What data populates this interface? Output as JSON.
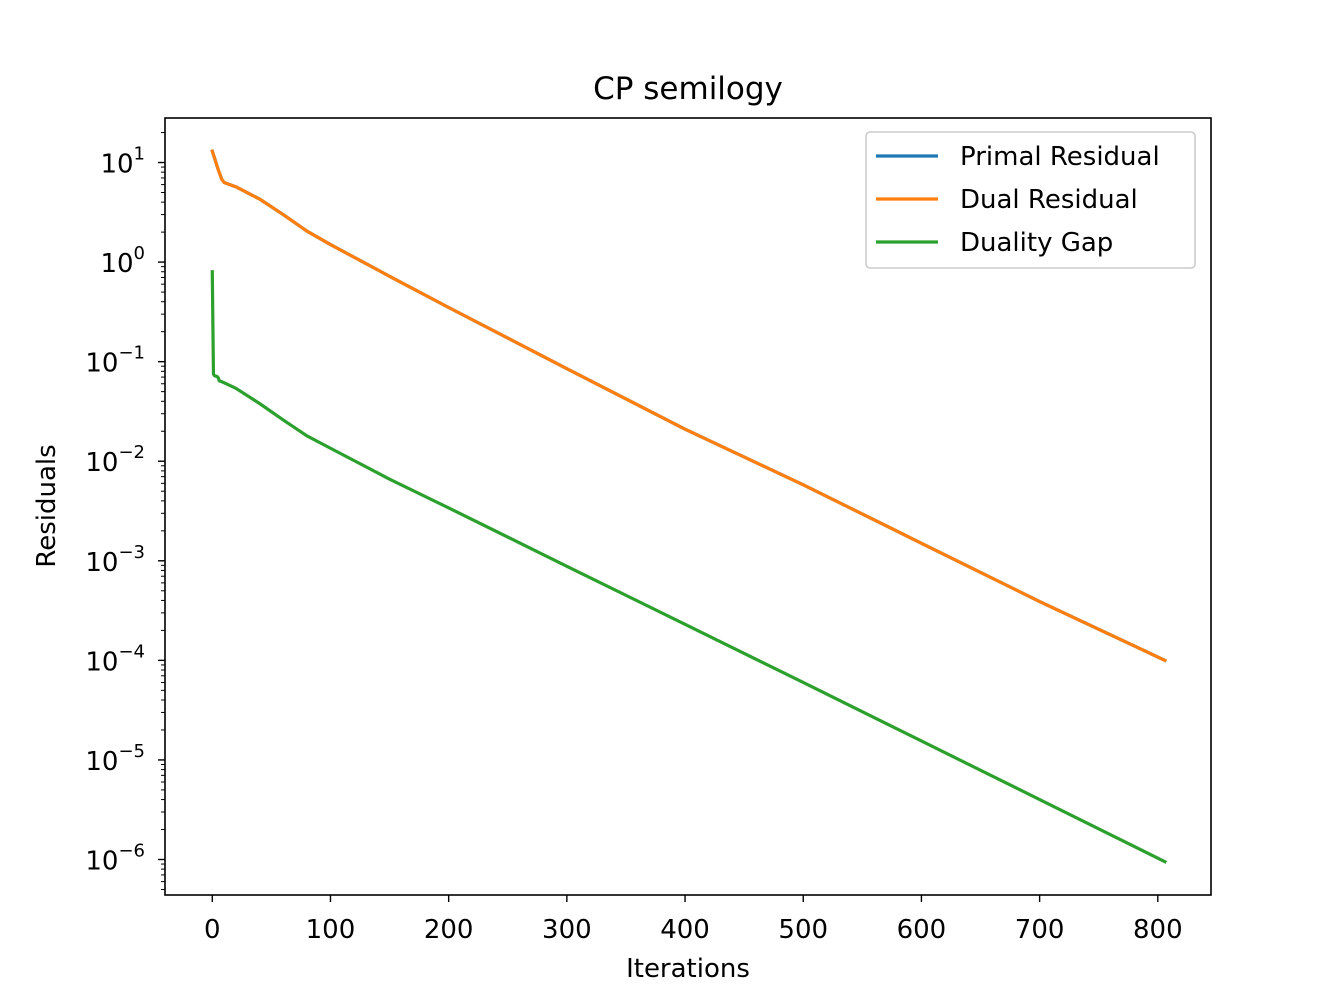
{
  "chart_data": {
    "type": "line",
    "title": "CP semilogy",
    "xlabel": "Iterations",
    "ylabel": "Residuals",
    "xlim": [
      -40,
      845
    ],
    "ylim": [
      4.4e-07,
      28
    ],
    "yscale": "log",
    "grid": false,
    "legend_position": "top-right",
    "x_ticks": [
      0,
      100,
      200,
      300,
      400,
      500,
      600,
      700,
      800
    ],
    "y_ticks": [
      {
        "exp": "-6",
        "value": 1e-06
      },
      {
        "exp": "-5",
        "value": 1e-05
      },
      {
        "exp": "-4",
        "value": 0.0001
      },
      {
        "exp": "-3",
        "value": 0.001
      },
      {
        "exp": "-2",
        "value": 0.01
      },
      {
        "exp": "-1",
        "value": 0.1
      },
      {
        "exp": "0",
        "value": 1
      },
      {
        "exp": "1",
        "value": 10
      }
    ],
    "series": [
      {
        "name": "Primal Residual",
        "color": "#1f77b4",
        "x": [
          0,
          2,
          5,
          8,
          10,
          20,
          40,
          60,
          80,
          100,
          150,
          200,
          300,
          400,
          500,
          600,
          700,
          806
        ],
        "y": [
          13.0,
          11.0,
          8.5,
          6.8,
          6.3,
          5.7,
          4.3,
          3.0,
          2.05,
          1.5,
          0.72,
          0.35,
          0.085,
          0.021,
          0.0058,
          0.0015,
          0.00039,
          0.0001
        ]
      },
      {
        "name": "Dual Residual",
        "color": "#ff7f0e",
        "x": [
          0,
          2,
          5,
          8,
          10,
          20,
          40,
          60,
          80,
          100,
          150,
          200,
          300,
          400,
          500,
          600,
          700,
          806
        ],
        "y": [
          13.0,
          11.0,
          8.5,
          6.8,
          6.3,
          5.7,
          4.3,
          3.0,
          2.05,
          1.5,
          0.72,
          0.35,
          0.085,
          0.021,
          0.0058,
          0.0015,
          0.00039,
          0.0001
        ]
      },
      {
        "name": "Duality Gap",
        "color": "#2ca02c",
        "x": [
          0,
          1,
          2,
          4,
          5,
          6,
          8,
          20,
          40,
          60,
          80,
          100,
          150,
          200,
          300,
          400,
          500,
          600,
          700,
          806
        ],
        "y": [
          0.8,
          0.075,
          0.072,
          0.071,
          0.069,
          0.064,
          0.063,
          0.054,
          0.038,
          0.026,
          0.018,
          0.0135,
          0.0066,
          0.0034,
          0.00088,
          0.00023,
          6e-05,
          1.55e-05,
          4e-06,
          9.5e-07
        ]
      }
    ]
  }
}
